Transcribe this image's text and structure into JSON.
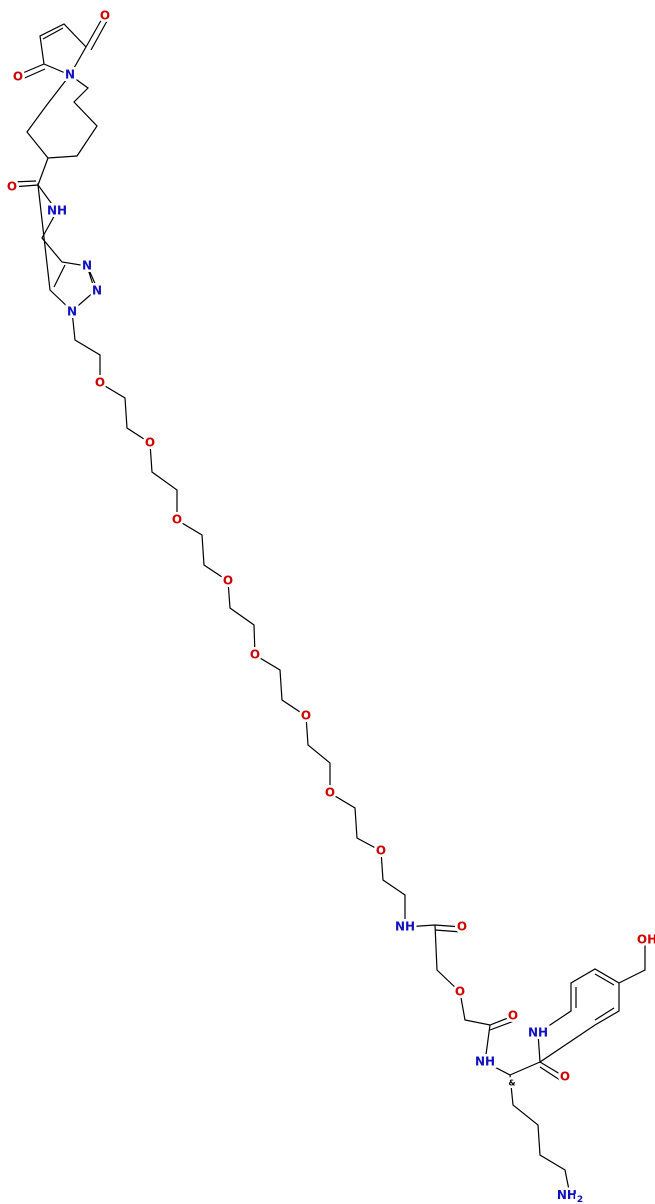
{
  "atoms": {
    "maleimide_n": "N",
    "maleimide_o1": "O",
    "maleimide_o2": "O",
    "amide1_o": "O",
    "amide1_nh": "NH",
    "triazole_n3": "N",
    "triazole_n2": "N",
    "triazole_n1": "N",
    "peg_o": [
      "O",
      "O",
      "O",
      "O",
      "O",
      "O",
      "O",
      "O"
    ],
    "amide2_nh": "NH",
    "amide2_o": "O",
    "ether_o": "O",
    "amide3_o": "O",
    "amide3_nh": "NH",
    "stereo": "&",
    "amide4_nh": "NH",
    "amide4_o": "O",
    "hydroxyl": "OH",
    "amine": {
      "text": "NH",
      "subscript": "2"
    }
  }
}
